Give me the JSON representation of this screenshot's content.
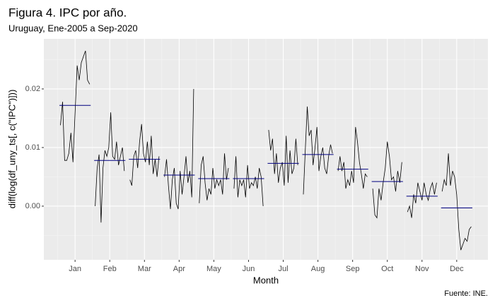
{
  "chart_data": {
    "type": "seasonal",
    "title": "Figura 4. IPC por año.",
    "subtitle": "Uruguay, Ene-2005 a Sep-2020",
    "x_label": "Month",
    "y_label": "diff(log(df_uny_ts[, c(\"IPC\")]))",
    "caption": "Fuente: INE.",
    "categories": [
      "Jan",
      "Feb",
      "Mar",
      "Apr",
      "May",
      "Jun",
      "Jul",
      "Aug",
      "Sep",
      "Oct",
      "Nov",
      "Dec"
    ],
    "values": [
      [
        0.0138,
        0.0178,
        0.0078,
        0.0078,
        0.009,
        0.0125,
        0.0075,
        0.016,
        0.024,
        0.0215,
        0.0245,
        0.0255,
        0.0265,
        0.0215,
        0.0208
      ],
      [
        0.0,
        0.0065,
        0.0088,
        -0.0028,
        0.0065,
        0.0095,
        0.0085,
        0.01,
        0.016,
        0.0085,
        0.008,
        0.011,
        0.007,
        0.0085,
        0.01,
        0.006
      ],
      [
        0.0045,
        0.0035,
        0.0085,
        0.0095,
        0.0065,
        0.011,
        0.014,
        0.009,
        0.0075,
        0.011,
        0.007,
        0.012,
        0.0055,
        0.008,
        0.005,
        0.0085
      ],
      [
        0.005,
        0.008,
        0.0035,
        -0.0005,
        0.0045,
        0.0065,
        0.0005,
        -0.0005,
        0.006,
        0.002,
        0.005,
        0.0085,
        0.004,
        0.006,
        0.0015,
        0.02
      ],
      [
        0.0005,
        0.007,
        0.0085,
        0.004,
        0.001,
        0.003,
        0.002,
        0.0065,
        0.003,
        0.0045,
        0.0035,
        0.0045,
        0.002,
        0.009,
        0.0045,
        0.0065
      ],
      [
        0.003,
        0.0085,
        0.0015,
        0.0045,
        0.0035,
        0.0045,
        0.0015,
        0.007,
        0.003,
        0.004,
        0.0035,
        0.005,
        0.003,
        0.0065,
        0.005,
        0.0
      ],
      [
        0.013,
        0.0095,
        0.0115,
        0.0055,
        0.009,
        0.004,
        0.0065,
        0.0075,
        0.0035,
        0.012,
        0.004,
        0.0095,
        0.0055,
        0.0065,
        0.0115,
        0.007
      ],
      [
        0.002,
        0.0095,
        0.017,
        0.012,
        0.013,
        0.007,
        0.01,
        0.0135,
        0.006,
        0.0085,
        0.01,
        0.0065,
        0.0055,
        0.0085,
        0.0105,
        0.009
      ],
      [
        0.006,
        0.0085,
        0.006,
        0.0075,
        0.003,
        0.0045,
        0.0035,
        0.006,
        0.004,
        0.0135,
        0.011,
        0.0075,
        0.0055,
        0.003,
        0.0055,
        0.005
      ],
      [
        0.003,
        -0.0015,
        -0.002,
        0.003,
        0.001,
        0.004,
        0.0065,
        0.011,
        0.0085,
        0.0045,
        0.005,
        0.0025,
        0.006,
        0.004,
        0.0075
      ],
      [
        -0.001,
        0.0,
        -0.002,
        0.002,
        0.0005,
        0.004,
        0.0025,
        0.001,
        0.004,
        0.002,
        0.001,
        0.003,
        0.004,
        0.002,
        0.004
      ],
      [
        0.0025,
        0.0045,
        0.0035,
        0.009,
        0.0035,
        0.006,
        0.005,
        0.002,
        -0.004,
        -0.0075,
        -0.0065,
        -0.0055,
        -0.006,
        -0.004,
        -0.0035
      ]
    ],
    "means": [
      0.0172,
      0.0078,
      0.008,
      0.0053,
      0.0047,
      0.0047,
      0.0073,
      0.0088,
      0.0063,
      0.0042,
      0.0017,
      -0.0003
    ],
    "line_color": "#000000",
    "mean_color": "#000080",
    "ylim": [
      -0.00916,
      0.02855
    ],
    "yticks": [
      {
        "value": 0,
        "label": "0.00"
      },
      {
        "value": 0.01,
        "label": "0.01"
      },
      {
        "value": 0.02,
        "label": "0.02"
      }
    ],
    "yminor": [
      -0.005,
      0.005,
      0.015,
      0.025
    ],
    "grid": true
  }
}
